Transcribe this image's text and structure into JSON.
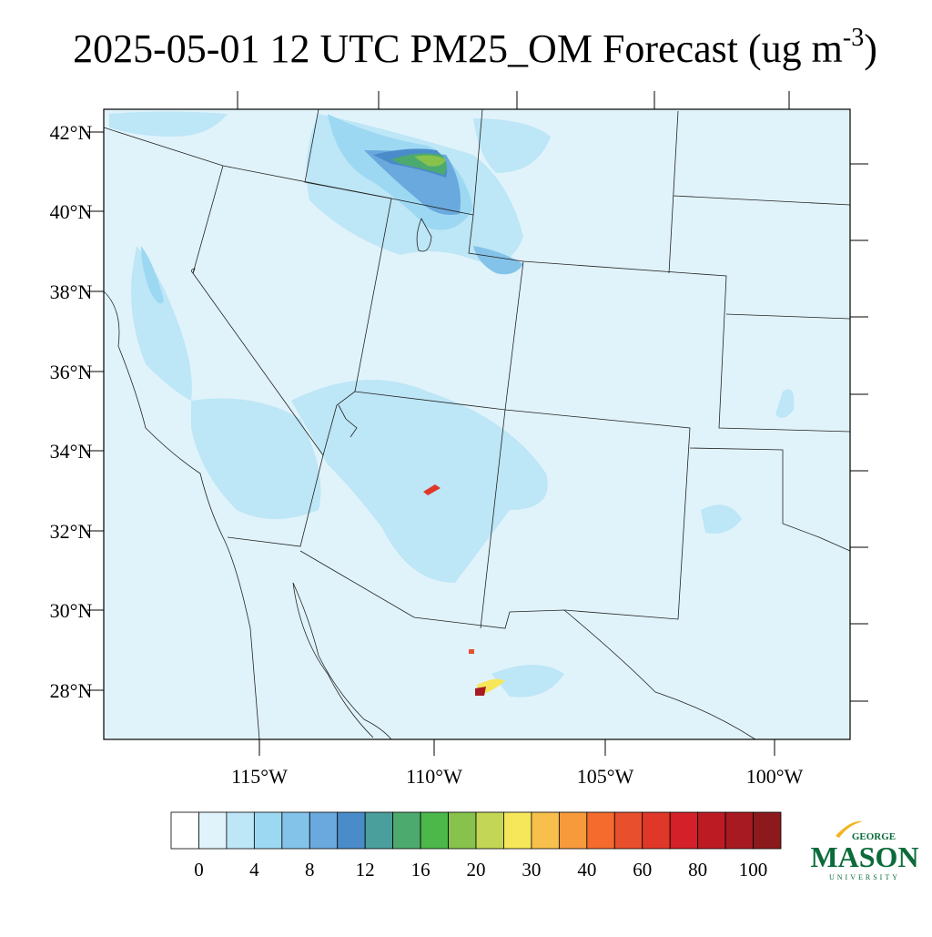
{
  "title": {
    "main": "2025-05-01 12 UTC PM25_OM Forecast (ug m",
    "superscript": "-3",
    "end": ")"
  },
  "latitude_labels": [
    "42°N",
    "40°N",
    "38°N",
    "36°N",
    "34°N",
    "32°N",
    "30°N",
    "28°N"
  ],
  "longitude_labels": [
    "115°W",
    "110°W",
    "105°W",
    "100°W"
  ],
  "colorbar": {
    "colors": [
      "#ffffff",
      "#e0f3fb",
      "#bde6f6",
      "#9dd8f3",
      "#83c3e9",
      "#6aa9dd",
      "#4a8cc9",
      "#4a9e9c",
      "#4daa6e",
      "#4bb849",
      "#86c24c",
      "#c3d655",
      "#f6e75a",
      "#f7c04c",
      "#f79a3c",
      "#f46b2d",
      "#e84f2d",
      "#e03828",
      "#d42028",
      "#bd1b24",
      "#a81a22",
      "#8c1a1d"
    ],
    "labels": [
      0,
      4,
      8,
      12,
      16,
      20,
      30,
      40,
      60,
      80,
      100
    ]
  },
  "logo": {
    "top": "GEORGE",
    "middle": "MASON",
    "bottom": "UNIVERSITY"
  }
}
